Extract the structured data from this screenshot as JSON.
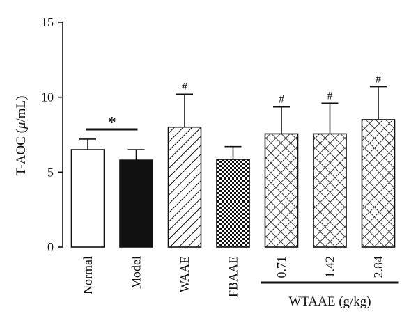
{
  "chart_data": {
    "type": "bar",
    "categories": [
      "Normal",
      "Model",
      "WAAE",
      "FBAAE",
      "0.71",
      "1.42",
      "2.84"
    ],
    "values": [
      6.5,
      5.8,
      8.0,
      5.85,
      7.55,
      7.55,
      8.5
    ],
    "errors": [
      0.7,
      0.7,
      2.2,
      0.85,
      1.8,
      2.05,
      2.2
    ],
    "fills": [
      "white",
      "black",
      "diagonal-hatch",
      "dots",
      "crosshatch",
      "crosshatch",
      "crosshatch"
    ],
    "annotations": [
      "",
      "",
      "#",
      "",
      "#",
      "#",
      "#"
    ],
    "significance": {
      "from": 0,
      "to": 1,
      "label": "*"
    },
    "group_label": {
      "from": 4,
      "to": 6,
      "label": "WTAAE (g/kg)"
    },
    "ylabel": "T-AOC (μ/mL)",
    "ylim": [
      0,
      15
    ],
    "yticks": [
      "0",
      "5",
      "10",
      "15"
    ],
    "grid": false
  }
}
